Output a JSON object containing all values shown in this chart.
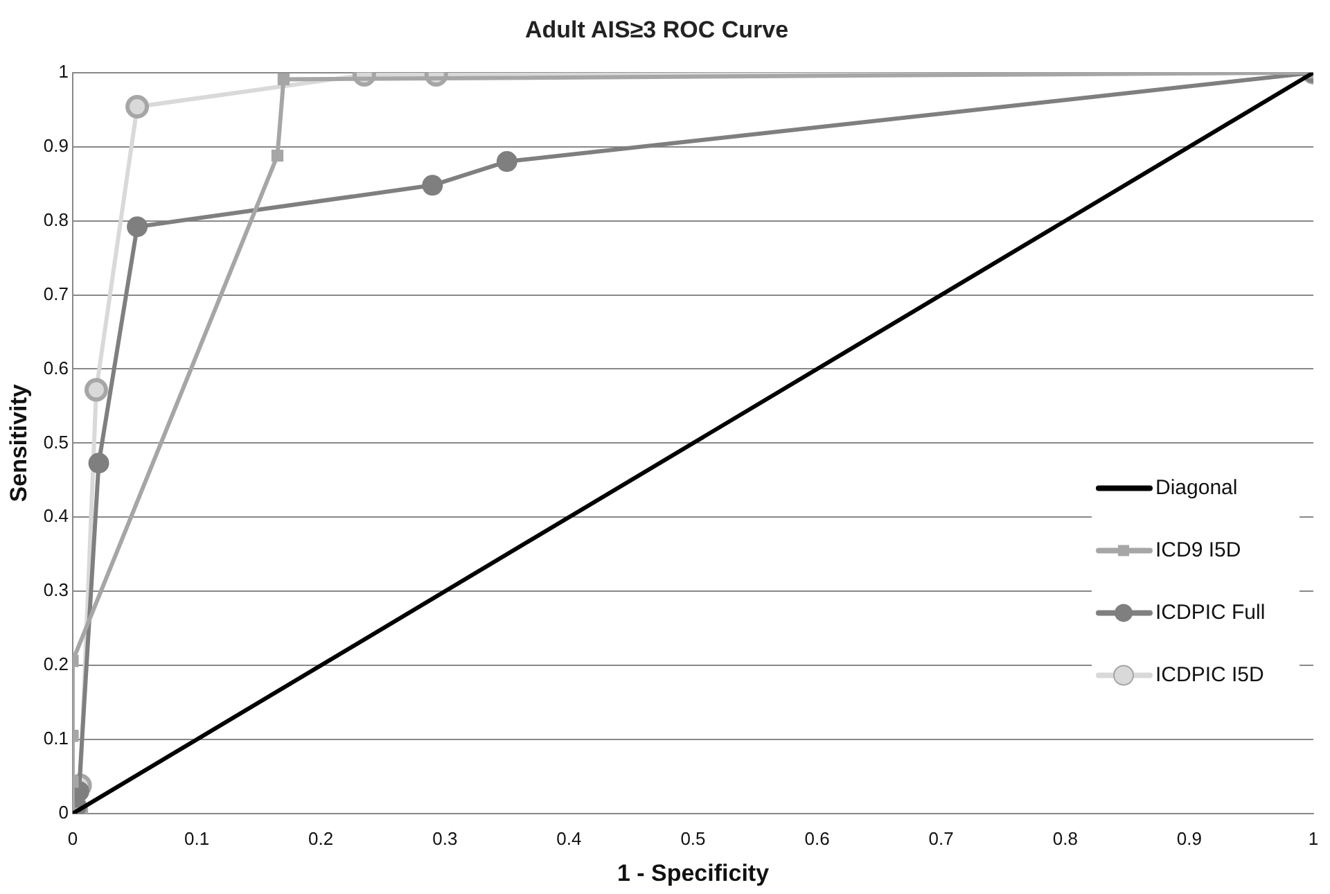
{
  "chart_data": {
    "type": "line",
    "title": "Adult AIS≥3 ROC Curve",
    "xlabel": "1 - Specificity",
    "ylabel": "Sensitivity",
    "xlim": [
      0,
      1
    ],
    "xticks": [
      0,
      0.1,
      0.2,
      0.3,
      0.4,
      0.5,
      0.6,
      0.7,
      0.8,
      0.9,
      1
    ],
    "ylim": [
      0,
      1
    ],
    "yticks": [
      0,
      0.1,
      0.2,
      0.3,
      0.4,
      0.5,
      0.6,
      0.7,
      0.8,
      0.9,
      1
    ],
    "grid": "y",
    "legend": "right",
    "line_style": "solid",
    "series": [
      {
        "name": "Diagonal",
        "color": "#000000",
        "marker": "none",
        "x": [
          0,
          1
        ],
        "values": [
          0,
          1
        ]
      },
      {
        "name": "ICD9 I5D",
        "color": "#a6a6a6",
        "marker": "square",
        "x": [
          0,
          0,
          0,
          0,
          0.165,
          0.17,
          1
        ],
        "values": [
          0,
          0.043,
          0.105,
          0.206,
          0.888,
          0.991,
          1
        ]
      },
      {
        "name": "ICDPIC Full",
        "color": "#7f7f7f",
        "marker": "circle",
        "x": [
          0,
          0.003,
          0.005,
          0.021,
          0.052,
          0.29,
          0.35,
          1
        ],
        "values": [
          0,
          0.01,
          0.03,
          0.473,
          0.792,
          0.848,
          0.88,
          1
        ]
      },
      {
        "name": "ICDPIC I5D",
        "color": "#d9d9d9",
        "marker": "circle",
        "x": [
          0,
          0.003,
          0.006,
          0.019,
          0.052,
          0.235,
          0.293,
          1
        ],
        "values": [
          0,
          0.005,
          0.038,
          0.572,
          0.954,
          0.997,
          0.997,
          1
        ]
      }
    ]
  }
}
